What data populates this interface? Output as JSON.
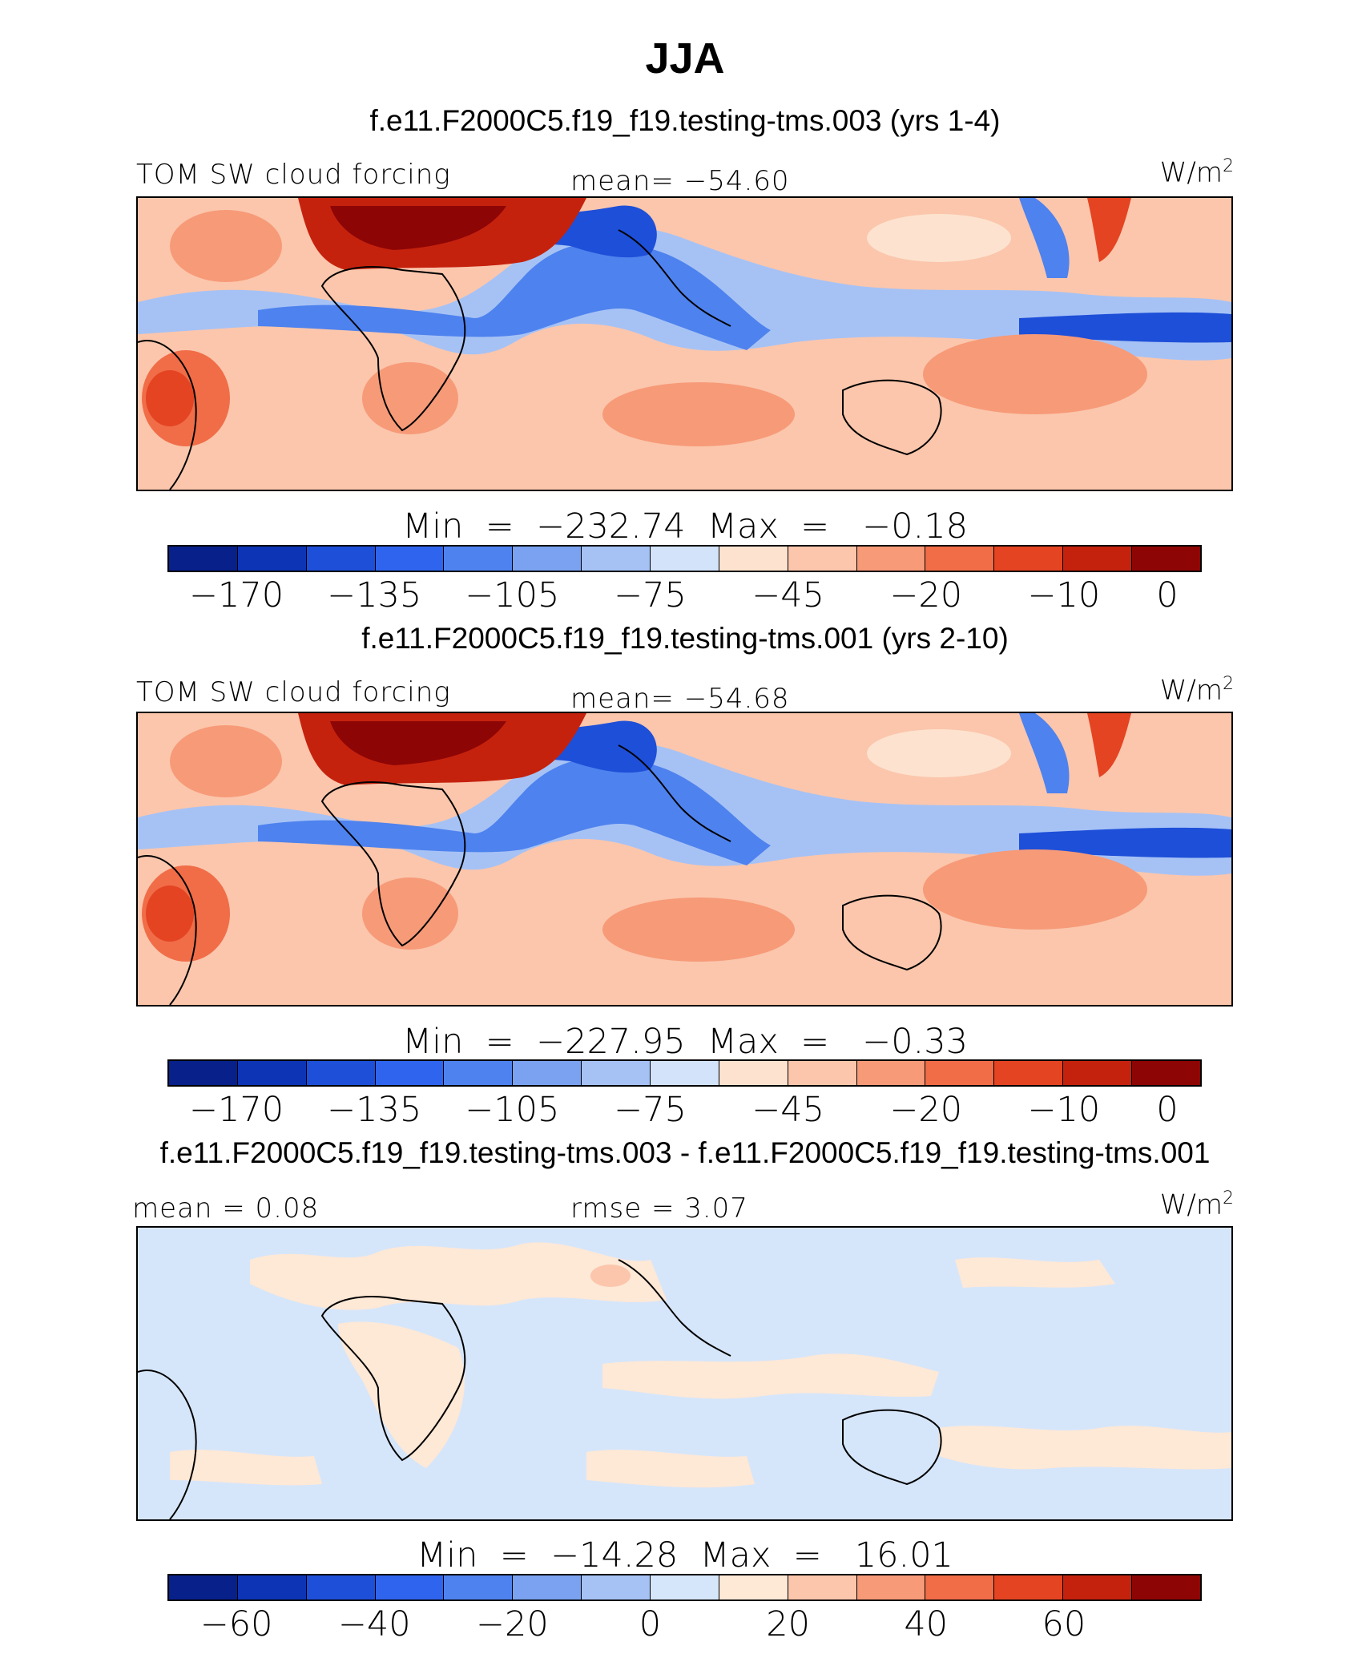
{
  "title": "JJA",
  "palettes": {
    "main": [
      "#08208a",
      "#0c34b4",
      "#1e4fd8",
      "#2f64ee",
      "#4e82ee",
      "#7aa2f0",
      "#a6c2f5",
      "#d2e3fa",
      "#fde3cf",
      "#fbc6ac",
      "#f79a78",
      "#f06d48",
      "#e44422",
      "#c5220e",
      "#8e0505"
    ],
    "diff": [
      "#08208a",
      "#0c34b4",
      "#1e4fd8",
      "#2f64ee",
      "#4e82ee",
      "#7aa2f0",
      "#a6c2f5",
      "#d6e6fa",
      "#fee8d6",
      "#fbc6ac",
      "#f79a78",
      "#f06d48",
      "#e44422",
      "#c5220e",
      "#8e0505"
    ]
  },
  "panels": [
    {
      "case_title": "f.e11.F2000C5.f19_f19.testing-tms.003 (yrs 1-4)",
      "label": "TOM SW cloud forcing",
      "mean": "mean= −54.60",
      "units": "W/m",
      "units_sup": "2",
      "stats": "Min  =  −232.74  Max  =   −0.18",
      "ticks": [
        "−170",
        "−135",
        "−105",
        "−75",
        "−45",
        "−20",
        "−10",
        "0"
      ],
      "background_level": "#fbc6ac"
    },
    {
      "case_title": "f.e11.F2000C5.f19_f19.testing-tms.001 (yrs 2-10)",
      "label": "TOM SW cloud forcing",
      "mean": "mean= −54.68",
      "units": "W/m",
      "units_sup": "2",
      "stats": "Min  =  −227.95  Max  =   −0.33",
      "ticks": [
        "−170",
        "−135",
        "−105",
        "−75",
        "−45",
        "−20",
        "−10",
        "0"
      ],
      "background_level": "#fbc6ac"
    },
    {
      "case_title": "f.e11.F2000C5.f19_f19.testing-tms.003 - f.e11.F2000C5.f19_f19.testing-tms.001",
      "label": "mean =    0.08",
      "mean": "rmse =     3.07",
      "units": "W/m",
      "units_sup": "2",
      "stats": "Min  =  −14.28  Max  =   16.01",
      "ticks": [
        "−60",
        "−40",
        "−20",
        "0",
        "20",
        "40",
        "60"
      ],
      "background_level": "#d6e6fa"
    }
  ]
}
